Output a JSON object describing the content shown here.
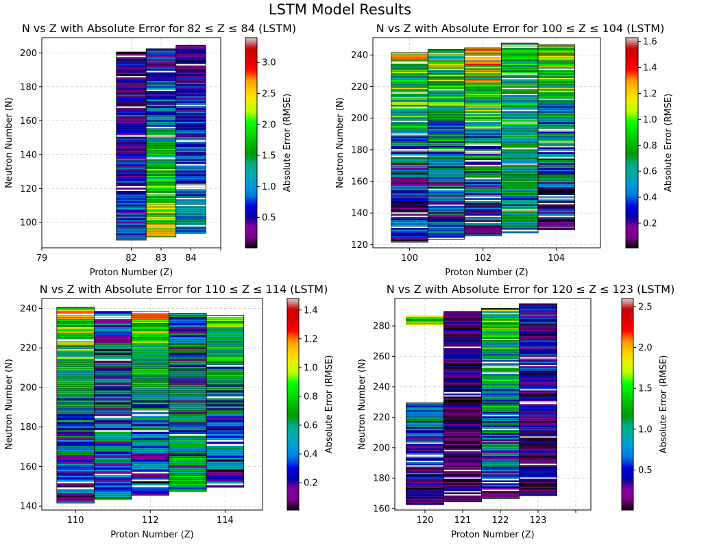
{
  "suptitle": "LSTM Model Results",
  "chart_data": [
    {
      "type": "heatmap",
      "title": "N vs Z with Absolute Error for 82 ≤ Z ≤ 84 (LSTM)",
      "xlabel": "Proton Number (Z)",
      "ylabel": "Neutron Number (N)",
      "colorbar_label": "Absolute Error (RMSE)",
      "xlim": [
        79,
        85
      ],
      "ylim": [
        85,
        209
      ],
      "xticks": [
        79,
        82,
        83,
        84,
        85
      ],
      "xtick_labels": [
        "79",
        "82",
        "83",
        "84",
        ""
      ],
      "yticks": [
        100,
        120,
        140,
        160,
        180,
        200
      ],
      "cbar_range": [
        0.01,
        3.4
      ],
      "cbar_ticks": [
        0.5,
        1.0,
        1.5,
        2.0,
        2.5,
        3.0
      ],
      "columns": [
        {
          "z": 82,
          "n_min": 90,
          "n_max": 200,
          "err_low": 0.75,
          "err_high": 0.35,
          "spread": 0.45
        },
        {
          "z": 83,
          "n_min": 92,
          "n_max": 202,
          "err_low": 2.4,
          "err_high": 0.35,
          "spread": 0.55
        },
        {
          "z": 84,
          "n_min": 94,
          "n_max": 204,
          "err_low": 1.1,
          "err_high": 0.3,
          "spread": 0.4
        }
      ]
    },
    {
      "type": "heatmap",
      "title": "N vs Z with Absolute Error for 100 ≤ Z ≤ 104 (LSTM)",
      "xlabel": "Proton Number (Z)",
      "ylabel": "Neutron Number (N)",
      "colorbar_label": "Absolute Error (RMSE)",
      "xlim": [
        99,
        105.2
      ],
      "ylim": [
        118,
        251
      ],
      "xticks": [
        100,
        102,
        104
      ],
      "xtick_labels": [
        "100",
        "102",
        "104"
      ],
      "yticks": [
        120,
        140,
        160,
        180,
        200,
        220,
        240
      ],
      "cbar_range": [
        0.01,
        1.63
      ],
      "cbar_ticks": [
        0.2,
        0.4,
        0.6,
        0.8,
        1.0,
        1.2,
        1.4,
        1.6
      ],
      "columns": [
        {
          "z": 100,
          "n_min": 122,
          "n_max": 241,
          "err_low": 0.15,
          "err_high": 1.0,
          "spread": 0.35
        },
        {
          "z": 101,
          "n_min": 124,
          "n_max": 243,
          "err_low": 0.3,
          "err_high": 0.9,
          "spread": 0.35
        },
        {
          "z": 102,
          "n_min": 126,
          "n_max": 244,
          "err_low": 0.2,
          "err_high": 1.1,
          "spread": 0.4
        },
        {
          "z": 103,
          "n_min": 128,
          "n_max": 247,
          "err_low": 0.6,
          "err_high": 0.8,
          "spread": 0.3
        },
        {
          "z": 104,
          "n_min": 130,
          "n_max": 246,
          "err_low": 0.15,
          "err_high": 1.0,
          "spread": 0.35
        }
      ]
    },
    {
      "type": "heatmap",
      "title": "N vs Z with Absolute Error for 110 ≤ Z ≤ 114 (LSTM)",
      "xlabel": "Proton Number (Z)",
      "ylabel": "Neutron Number (N)",
      "colorbar_label": "Absolute Error (RMSE)",
      "xlim": [
        109.1,
        115
      ],
      "ylim": [
        138,
        245
      ],
      "xticks": [
        110,
        112,
        114
      ],
      "xtick_labels": [
        "110",
        "112",
        "114"
      ],
      "yticks": [
        140,
        160,
        180,
        200,
        220,
        240
      ],
      "cbar_range": [
        0.01,
        1.48
      ],
      "cbar_ticks": [
        0.2,
        0.4,
        0.6,
        0.8,
        1.0,
        1.2,
        1.4
      ],
      "columns": [
        {
          "z": 110,
          "n_min": 142,
          "n_max": 240,
          "err_low": 0.2,
          "err_high": 0.95,
          "spread": 0.3
        },
        {
          "z": 111,
          "n_min": 144,
          "n_max": 238,
          "err_low": 0.5,
          "err_high": 0.3,
          "spread": 0.35
        },
        {
          "z": 112,
          "n_min": 146,
          "n_max": 238,
          "err_low": 0.15,
          "err_high": 0.95,
          "spread": 0.3
        },
        {
          "z": 113,
          "n_min": 148,
          "n_max": 237,
          "err_low": 0.5,
          "err_high": 0.4,
          "spread": 0.35
        },
        {
          "z": 114,
          "n_min": 150,
          "n_max": 236,
          "err_low": 0.25,
          "err_high": 0.75,
          "spread": 0.3
        }
      ]
    },
    {
      "type": "heatmap",
      "title": "N vs Z with Absolute Error for 120 ≤ Z ≤ 123 (LSTM)",
      "xlabel": "Proton Number (Z)",
      "ylabel": "Neutron Number (N)",
      "colorbar_label": "Absolute Error (RMSE)",
      "xlim": [
        119.2,
        124.4
      ],
      "ylim": [
        159,
        298
      ],
      "xticks": [
        120,
        121,
        122,
        123,
        124
      ],
      "xtick_labels": [
        "120",
        "121",
        "122",
        "123",
        ""
      ],
      "yticks": [
        160,
        180,
        200,
        220,
        240,
        260,
        280
      ],
      "cbar_range": [
        0.01,
        2.6
      ],
      "cbar_ticks": [
        0.5,
        1.0,
        1.5,
        2.0,
        2.5
      ],
      "columns": [
        {
          "z": 120,
          "n_min": 163,
          "n_max": 229,
          "err_low": 0.2,
          "err_high": 0.9,
          "spread": 0.4,
          "extra": {
            "n_min": 281,
            "n_max": 286,
            "err": 1.6
          }
        },
        {
          "z": 121,
          "n_min": 165,
          "n_max": 289,
          "err_low": 0.1,
          "err_high": 0.3,
          "spread": 0.3
        },
        {
          "z": 122,
          "n_min": 167,
          "n_max": 291,
          "err_low": 0.6,
          "err_high": 1.3,
          "spread": 0.6
        },
        {
          "z": 123,
          "n_min": 169,
          "n_max": 294,
          "err_low": 0.2,
          "err_high": 0.4,
          "spread": 0.35
        }
      ]
    }
  ]
}
